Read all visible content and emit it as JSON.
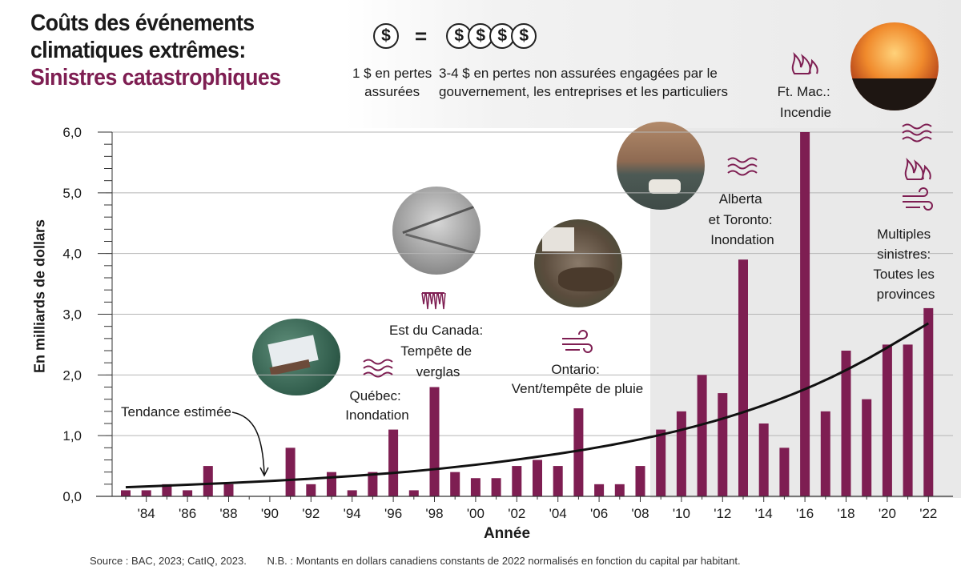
{
  "title": {
    "line1": "Coûts des événements",
    "line2": "climatiques extrêmes:",
    "line3": "Sinistres catastrophiques"
  },
  "legend": {
    "coin_symbol": "$",
    "equals": "=",
    "insured_line1": "1 $ en pertes",
    "insured_line2": "assurées",
    "uninsured_line1": "3-4 $ en pertes non assurées engagées par le",
    "uninsured_line2": "gouvernement, les entreprises et les particuliers"
  },
  "colors": {
    "bar": "#7e1e52",
    "title_accent": "#7e1e52",
    "shaded_region": "#e9e9e9",
    "trend": "#111111"
  },
  "chart_data": {
    "type": "bar",
    "xlabel": "Année",
    "ylabel": "En milliards de dollars",
    "ylim": [
      0,
      6
    ],
    "yticks": [
      "0,0",
      "1,0",
      "2,0",
      "3,0",
      "4,0",
      "5,0",
      "6,0"
    ],
    "grid": true,
    "categories": [
      1983,
      1984,
      1985,
      1986,
      1987,
      1988,
      1989,
      1990,
      1991,
      1992,
      1993,
      1994,
      1995,
      1996,
      1997,
      1998,
      1999,
      2000,
      2001,
      2002,
      2003,
      2004,
      2005,
      2006,
      2007,
      2008,
      2009,
      2010,
      2011,
      2012,
      2013,
      2014,
      2015,
      2016,
      2017,
      2018,
      2019,
      2020,
      2021,
      2022
    ],
    "xtick_labels": [
      "'84",
      "'86",
      "'88",
      "'90",
      "'92",
      "'94",
      "'96",
      "'98",
      "'00",
      "'02",
      "'04",
      "'06",
      "'08",
      "'10",
      "'12",
      "'14",
      "'16",
      "'18",
      "'20",
      "'22"
    ],
    "series": [
      {
        "values": [
          0.1,
          0.1,
          0.2,
          0.1,
          0.5,
          0.2,
          0.0,
          0.0,
          0.8,
          0.2,
          0.4,
          0.1,
          0.4,
          1.1,
          0.1,
          1.8,
          0.4,
          0.3,
          0.3,
          0.5,
          0.6,
          0.5,
          1.45,
          0.2,
          0.2,
          0.5,
          1.1,
          1.4,
          2.0,
          1.7,
          3.9,
          1.2,
          0.8,
          6.0,
          1.4,
          2.4,
          1.6,
          2.5,
          2.5,
          3.1
        ]
      }
    ],
    "trend": {
      "label": "Tendance estimée",
      "x": [
        1983,
        1986,
        1990,
        1994,
        1998,
        2002,
        2006,
        2010,
        2014,
        2018,
        2022
      ],
      "y": [
        0.15,
        0.19,
        0.25,
        0.33,
        0.44,
        0.6,
        0.8,
        1.08,
        1.48,
        2.05,
        2.85
      ]
    },
    "shaded_from_year": 2009,
    "annotations": [
      {
        "lines": [
          "Québec:",
          "Inondation"
        ]
      },
      {
        "lines": [
          "Est du Canada:",
          "Tempête de",
          "verglas"
        ]
      },
      {
        "lines": [
          "Ontario:",
          "Vent/tempête de pluie"
        ]
      },
      {
        "lines": [
          "Alberta",
          "et Toronto:",
          "Inondation"
        ]
      },
      {
        "lines": [
          "Ft. Mac.:",
          "Incendie"
        ]
      },
      {
        "lines": [
          "Multiples",
          "sinistres:",
          "Toutes les",
          "provinces"
        ]
      }
    ]
  },
  "icons": {
    "flood": "flood-waves-icon",
    "ice": "ice-storm-icon",
    "wind": "wind-icon",
    "fire": "fire-icon",
    "coin": "dollar-coin-icon"
  },
  "source": {
    "text": "Source : BAC, 2023; CatIQ, 2023.",
    "note": "N.B. : Montants en dollars canadiens constants de 2022 normalisés en fonction du capital par habitant."
  }
}
